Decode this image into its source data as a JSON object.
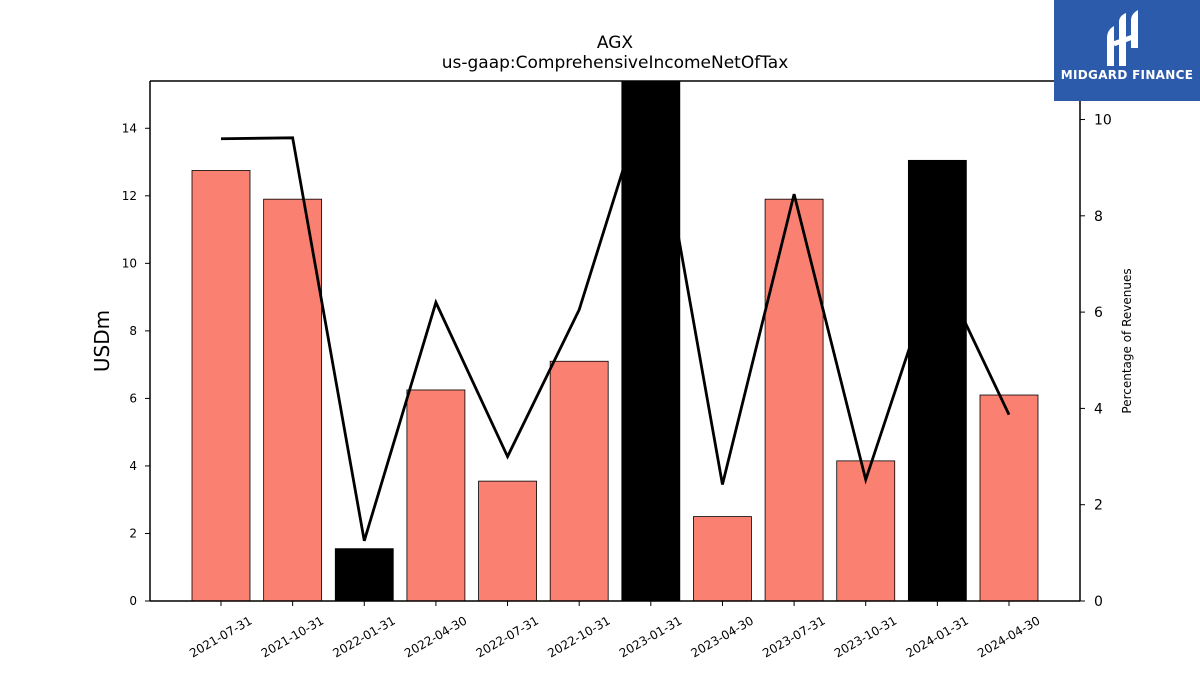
{
  "brand": {
    "name": "MIDGARD FINANCE",
    "bg_color": "#2d5bab"
  },
  "chart_data": {
    "type": "bar",
    "title": "AGX",
    "subtitle": "us-gaap:ComprehensiveIncomeNetOfTax",
    "ylabel": "USDm",
    "ylabel_right": "Percentage of Revenues",
    "ylim": [
      0,
      15.4
    ],
    "ylim_right": [
      0,
      10.8
    ],
    "yticks": [
      0,
      2,
      4,
      6,
      8,
      10,
      12,
      14
    ],
    "yticks_right": [
      0,
      2,
      4,
      6,
      8,
      10
    ],
    "categories": [
      "2021-07-31",
      "2021-10-31",
      "2022-01-31",
      "2022-04-30",
      "2022-07-31",
      "2022-10-31",
      "2023-01-31",
      "2023-04-30",
      "2023-07-31",
      "2023-10-31",
      "2024-01-31",
      "2024-04-30"
    ],
    "series": [
      {
        "type": "bar",
        "values": [
          12.75,
          11.9,
          1.55,
          6.25,
          3.55,
          7.1,
          15.6,
          2.5,
          11.9,
          4.15,
          13.05,
          6.1
        ],
        "colors": [
          "#fa8072",
          "#fa8072",
          "#000000",
          "#fa8072",
          "#fa8072",
          "#fa8072",
          "#000000",
          "#fa8072",
          "#fa8072",
          "#fa8072",
          "#000000",
          "#fa8072"
        ]
      },
      {
        "type": "line",
        "axis": "right",
        "color": "#000000",
        "values": [
          9.6,
          9.62,
          1.25,
          6.2,
          3.0,
          6.05,
          11.2,
          2.42,
          8.45,
          2.52,
          7.0,
          3.87
        ]
      }
    ],
    "grid": false,
    "legend": "none"
  }
}
